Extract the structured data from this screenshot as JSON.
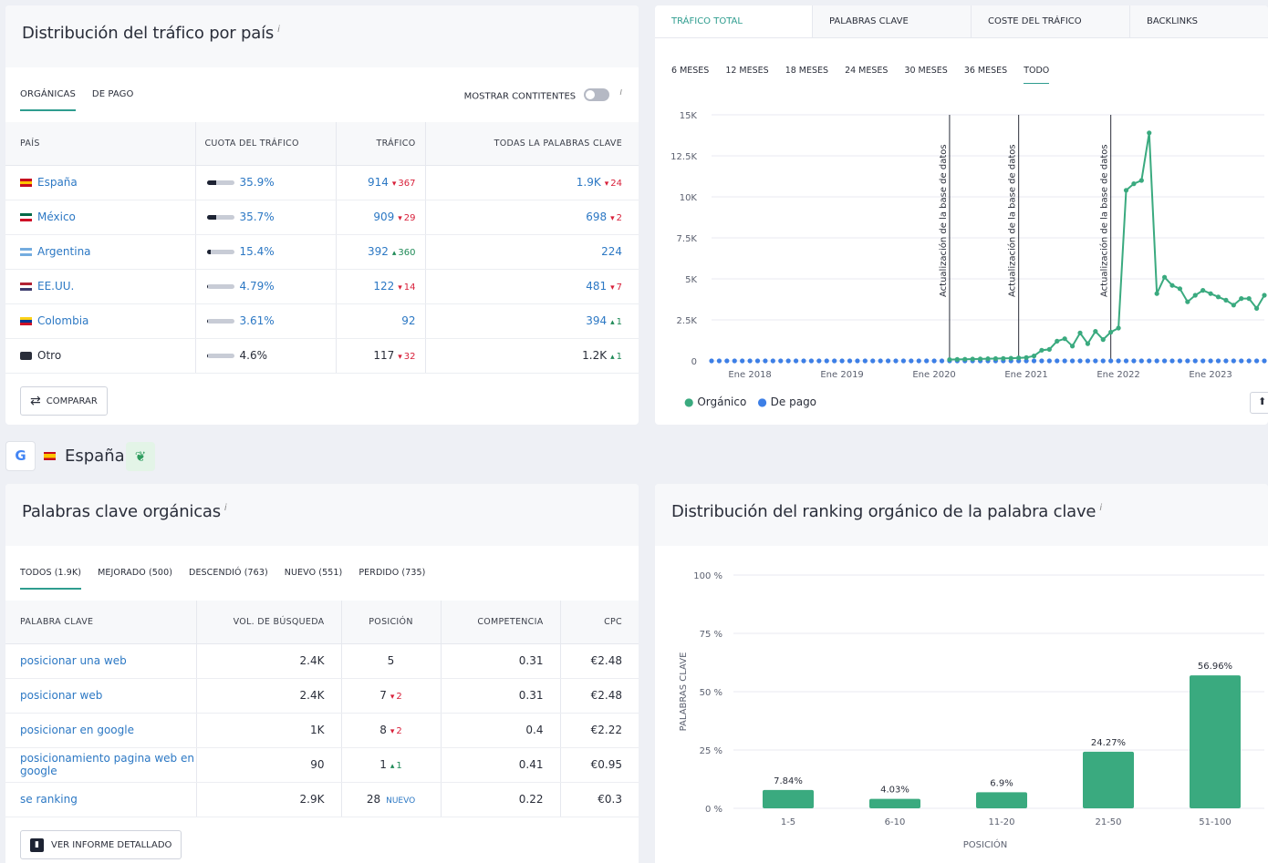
{
  "traffic_panel": {
    "title": "Distribución del tráfico por país",
    "info": "i",
    "tabs": [
      "ORGÁNICAS",
      "DE PAGO"
    ],
    "show_continents": "MOSTRAR CONTITENTES",
    "columns": [
      "PAÍS",
      "CUOTA DEL TRÁFICO",
      "TRÁFICO",
      "TODAS LA PALABRAS CLAVE"
    ],
    "rows": [
      {
        "country": "España",
        "share": "35.9%",
        "share_frac": 0.359,
        "traffic": "914",
        "traffic_delta": "367",
        "traffic_dir": "down",
        "kw": "1.9K",
        "kw_delta": "24",
        "kw_dir": "down",
        "flag": [
          "#c60b1e",
          "#ffc400",
          "#c60b1e"
        ]
      },
      {
        "country": "México",
        "share": "35.7%",
        "share_frac": 0.357,
        "traffic": "909",
        "traffic_delta": "29",
        "traffic_dir": "down",
        "kw": "698",
        "kw_delta": "2",
        "kw_dir": "down",
        "flag": [
          "#006847",
          "#ffffff",
          "#ce1126"
        ]
      },
      {
        "country": "Argentina",
        "share": "15.4%",
        "share_frac": 0.154,
        "traffic": "392",
        "traffic_delta": "360",
        "traffic_dir": "up",
        "kw": "224",
        "kw_delta": "",
        "kw_dir": "",
        "flag": [
          "#74acdf",
          "#ffffff",
          "#74acdf"
        ]
      },
      {
        "country": "EE.UU.",
        "share": "4.79%",
        "share_frac": 0.048,
        "traffic": "122",
        "traffic_delta": "14",
        "traffic_dir": "down",
        "kw": "481",
        "kw_delta": "7",
        "kw_dir": "down",
        "flag": [
          "#b22234",
          "#ffffff",
          "#3c3b6e"
        ]
      },
      {
        "country": "Colombia",
        "share": "3.61%",
        "share_frac": 0.036,
        "traffic": "92",
        "traffic_delta": "",
        "traffic_dir": "",
        "kw": "394",
        "kw_delta": "1",
        "kw_dir": "up",
        "flag": [
          "#fcd116",
          "#003893",
          "#ce1126"
        ]
      },
      {
        "country": "Otro",
        "share": "4.6%",
        "share_frac": 0.046,
        "traffic": "117",
        "traffic_delta": "32",
        "traffic_dir": "down",
        "kw": "1.2K",
        "kw_delta": "1",
        "kw_dir": "up",
        "flag": [
          "#2a2e3a",
          "#2a2e3a",
          "#2a2e3a"
        ]
      }
    ],
    "compare_button": "COMPARAR"
  },
  "trend_panel": {
    "tabs": [
      "TRÁFICO TOTAL",
      "PALABRAS CLAVE",
      "COSTE DEL TRÁFICO",
      "BACKLINKS"
    ],
    "ranges": [
      "6 MESES",
      "12 MESES",
      "18 MESES",
      "24 MESES",
      "30 MESES",
      "36 MESES",
      "TODO"
    ],
    "annotation": "Actualización de la base de datos",
    "legend": [
      "Orgánico",
      "De pago"
    ],
    "colors": {
      "organic": "#3aaa7f",
      "paid": "#3d7fe6"
    }
  },
  "chart_data": [
    {
      "type": "line",
      "title": "",
      "y_ticks": [
        "0",
        "2.5K",
        "5K",
        "7.5K",
        "10K",
        "12.5K",
        "15K"
      ],
      "x_ticks": [
        "Ene 2018",
        "Ene 2019",
        "Ene 2020",
        "Ene 2021",
        "Ene 2022",
        "Ene 2023"
      ],
      "ylim": [
        0,
        15000
      ],
      "series": [
        {
          "name": "Orgánico",
          "x": [
            "2020-03",
            "2020-04",
            "2020-05",
            "2020-06",
            "2020-07",
            "2020-08",
            "2020-09",
            "2020-10",
            "2020-11",
            "2020-12",
            "2021-01",
            "2021-02",
            "2021-03",
            "2021-04",
            "2021-05",
            "2021-06",
            "2021-07",
            "2021-08",
            "2021-09",
            "2021-10",
            "2021-11",
            "2021-12",
            "2022-01",
            "2022-02",
            "2022-03",
            "2022-04",
            "2022-05",
            "2022-06",
            "2022-07",
            "2022-08",
            "2022-09",
            "2022-10",
            "2022-11",
            "2022-12",
            "2023-01",
            "2023-02",
            "2023-03",
            "2023-04",
            "2023-05",
            "2023-06",
            "2023-07",
            "2023-08"
          ],
          "values": [
            80,
            90,
            100,
            110,
            120,
            130,
            140,
            150,
            160,
            180,
            200,
            300,
            650,
            700,
            1200,
            1350,
            900,
            1700,
            1050,
            1800,
            1300,
            1750,
            2000,
            10400,
            10800,
            11000,
            13900,
            4100,
            5100,
            4600,
            4400,
            3600,
            4000,
            4300,
            4100,
            3900,
            3700,
            3400,
            3800,
            3800,
            3200,
            4000
          ]
        },
        {
          "name": "De pago",
          "values_constant": 0
        }
      ],
      "annotations_at": [
        "2020-03",
        "2020-12",
        "2021-12"
      ]
    },
    {
      "type": "bar",
      "title": "Distribución del ranking orgánico de la palabra clave",
      "categories": [
        "1-5",
        "6-10",
        "11-20",
        "21-50",
        "51-100"
      ],
      "values": [
        7.84,
        4.03,
        6.9,
        24.27,
        56.96
      ],
      "value_labels": [
        "7.84%",
        "4.03%",
        "6.9%",
        "24.27%",
        "56.96%"
      ],
      "y_ticks": [
        "0 %",
        "25 %",
        "50 %",
        "75 %",
        "100 %"
      ],
      "ylim": [
        0,
        100
      ],
      "xlabel": "POSICIÓN",
      "ylabel": "PALABRAS CLAVE",
      "color": "#3aaa7f"
    }
  ],
  "country_strip": {
    "label": "España"
  },
  "keywords_panel": {
    "title": "Palabras clave orgánicas",
    "info": "i",
    "tabs": [
      "TODOS (1.9K)",
      "MEJORADO (500)",
      "DESCENDIÓ (763)",
      "NUEVO (551)",
      "PERDIDO (735)"
    ],
    "columns": [
      "PALABRA CLAVE",
      "VOL. DE BÚSQUEDA",
      "POSICIÓN",
      "COMPETENCIA",
      "CPC"
    ],
    "rows": [
      {
        "kw": "posicionar una web",
        "vol": "2.4K",
        "pos": "5",
        "pos_delta": "",
        "pos_dir": "",
        "comp": "0.31",
        "cpc": "€2.48"
      },
      {
        "kw": "posicionar web",
        "vol": "2.4K",
        "pos": "7",
        "pos_delta": "2",
        "pos_dir": "down",
        "comp": "0.31",
        "cpc": "€2.48"
      },
      {
        "kw": "posicionar en google",
        "vol": "1K",
        "pos": "8",
        "pos_delta": "2",
        "pos_dir": "down",
        "comp": "0.4",
        "cpc": "€2.22"
      },
      {
        "kw": "posicionamiento pagina web en google",
        "vol": "90",
        "pos": "1",
        "pos_delta": "1",
        "pos_dir": "up",
        "comp": "0.41",
        "cpc": "€0.95"
      },
      {
        "kw": "se ranking",
        "vol": "2.9K",
        "pos": "28",
        "pos_delta": "NUEVO",
        "pos_dir": "new",
        "comp": "0.22",
        "cpc": "€0.3"
      }
    ],
    "report_button": "VER INFORME DETALLADO"
  },
  "ranking_panel": {
    "title": "Distribución del ranking orgánico de la palabra clave",
    "info": "i"
  }
}
